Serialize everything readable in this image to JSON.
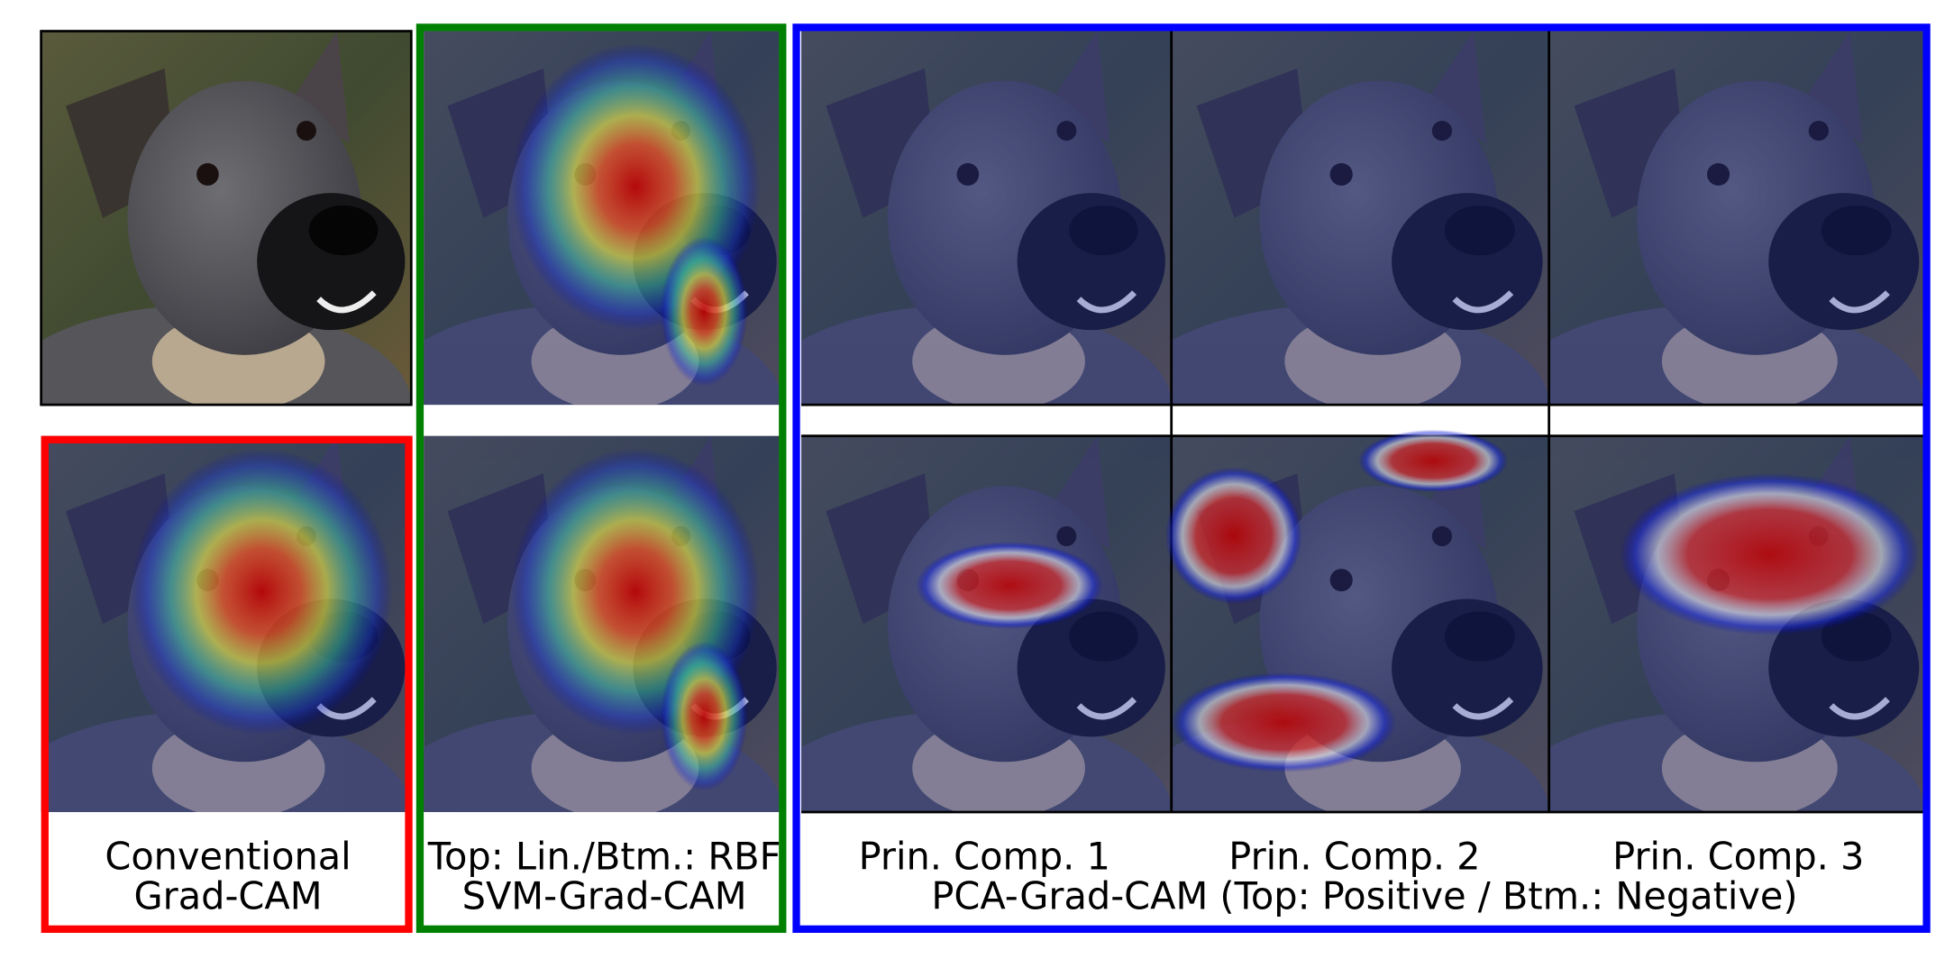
{
  "panels": [
    {
      "lines": [
        "Conventional",
        "Grad-CAM"
      ]
    },
    {
      "lines": [
        "Top: Lin./Btm.: RBF",
        "SVM-Grad-CAM"
      ]
    },
    {
      "labels": [
        "Prin. Comp. 1",
        "Prin. Comp. 2",
        "Prin. Comp. 3"
      ],
      "caption": "PCA-Grad-CAM (Top: Positive / Btm.: Negative)"
    }
  ]
}
